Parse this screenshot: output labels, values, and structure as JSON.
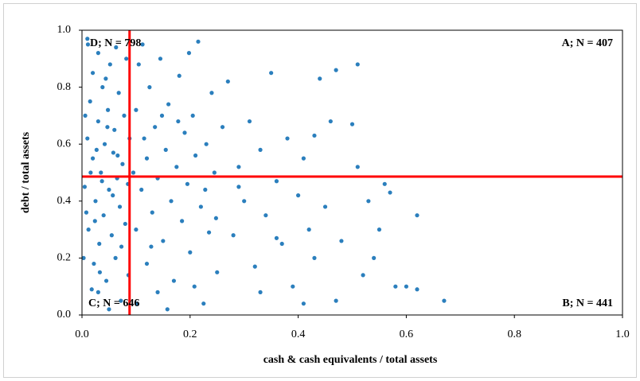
{
  "chart_data": {
    "type": "scatter",
    "xlabel": "cash & cash equivalents / total assets",
    "ylabel": "debt / total assets",
    "xlim": [
      0,
      1
    ],
    "ylim": [
      0,
      1
    ],
    "xticks": [
      {
        "value": 0,
        "label": "0.0"
      },
      0.2,
      0.4,
      0.6,
      0.8,
      {
        "value": 1,
        "label": "1.0"
      }
    ],
    "yticks": [
      {
        "value": 0,
        "label": "0.0"
      },
      0.2,
      0.4,
      0.6,
      0.8,
      {
        "value": 1,
        "label": "1.0"
      }
    ],
    "reference_lines": {
      "x": 0.088,
      "y": 0.486,
      "color": "#ff0000"
    },
    "annotations": [
      "D; N = 798",
      "A; N = 407",
      "C; N = 646",
      "B; N = 441"
    ],
    "series": [
      {
        "color": "#2b7fbd",
        "x": [
          0.005,
          0.01,
          0.012,
          0.015,
          0.02,
          0.02,
          0.022,
          0.025,
          0.03,
          0.03,
          0.032,
          0.035,
          0.038,
          0.04,
          0.042,
          0.045,
          0.048,
          0.05,
          0.052,
          0.055,
          0.058,
          0.06,
          0.062,
          0.065,
          0.068,
          0.07,
          0.072,
          0.075,
          0.078,
          0.08,
          0.082,
          0.085,
          0.003,
          0.008,
          0.011,
          0.018,
          0.027,
          0.033,
          0.044,
          0.057,
          0.063,
          0.073,
          0.088,
          0.006,
          0.016,
          0.024,
          0.037,
          0.047,
          0.066,
          0.086,
          0.01,
          0.05,
          0.03,
          0.095,
          0.1,
          0.1,
          0.105,
          0.11,
          0.115,
          0.12,
          0.12,
          0.125,
          0.13,
          0.135,
          0.14,
          0.14,
          0.145,
          0.15,
          0.155,
          0.16,
          0.165,
          0.17,
          0.175,
          0.18,
          0.185,
          0.19,
          0.195,
          0.2,
          0.205,
          0.21,
          0.215,
          0.22,
          0.225,
          0.23,
          0.235,
          0.24,
          0.245,
          0.25,
          0.102,
          0.112,
          0.128,
          0.148,
          0.158,
          0.178,
          0.198,
          0.208,
          0.228,
          0.248,
          0.26,
          0.27,
          0.28,
          0.29,
          0.3,
          0.31,
          0.32,
          0.33,
          0.34,
          0.35,
          0.36,
          0.37,
          0.38,
          0.39,
          0.4,
          0.41,
          0.42,
          0.43,
          0.44,
          0.45,
          0.46,
          0.47,
          0.48,
          0.5,
          0.51,
          0.52,
          0.53,
          0.54,
          0.55,
          0.57,
          0.58,
          0.6,
          0.62,
          0.62,
          0.67,
          0.51,
          0.56,
          0.47,
          0.41,
          0.43,
          0.36,
          0.33,
          0.29
        ],
        "y": [
          0.45,
          0.62,
          0.3,
          0.75,
          0.55,
          0.85,
          0.18,
          0.4,
          0.68,
          0.92,
          0.25,
          0.5,
          0.8,
          0.35,
          0.6,
          0.12,
          0.72,
          0.44,
          0.88,
          0.28,
          0.57,
          0.65,
          0.2,
          0.48,
          0.78,
          0.38,
          0.05,
          0.53,
          0.7,
          0.32,
          0.9,
          0.46,
          0.2,
          0.36,
          0.95,
          0.09,
          0.58,
          0.15,
          0.83,
          0.42,
          0.94,
          0.24,
          0.62,
          0.7,
          0.5,
          0.33,
          0.47,
          0.66,
          0.56,
          0.14,
          0.97,
          0.02,
          0.08,
          0.5,
          0.72,
          0.3,
          0.88,
          0.44,
          0.62,
          0.18,
          0.55,
          0.8,
          0.36,
          0.66,
          0.08,
          0.48,
          0.9,
          0.26,
          0.58,
          0.74,
          0.4,
          0.12,
          0.52,
          0.84,
          0.33,
          0.64,
          0.46,
          0.22,
          0.7,
          0.56,
          0.96,
          0.38,
          0.04,
          0.6,
          0.29,
          0.78,
          0.5,
          0.15,
          0.04,
          0.95,
          0.24,
          0.7,
          0.02,
          0.68,
          0.92,
          0.1,
          0.44,
          0.34,
          0.66,
          0.82,
          0.28,
          0.52,
          0.4,
          0.68,
          0.17,
          0.58,
          0.35,
          0.85,
          0.47,
          0.25,
          0.62,
          0.1,
          0.42,
          0.55,
          0.3,
          0.2,
          0.83,
          0.38,
          0.68,
          0.86,
          0.26,
          0.67,
          0.88,
          0.14,
          0.4,
          0.2,
          0.3,
          0.43,
          0.1,
          0.1,
          0.35,
          0.09,
          0.05,
          0.52,
          0.46,
          0.05,
          0.04,
          0.63,
          0.27,
          0.08,
          0.45
        ]
      }
    ]
  }
}
